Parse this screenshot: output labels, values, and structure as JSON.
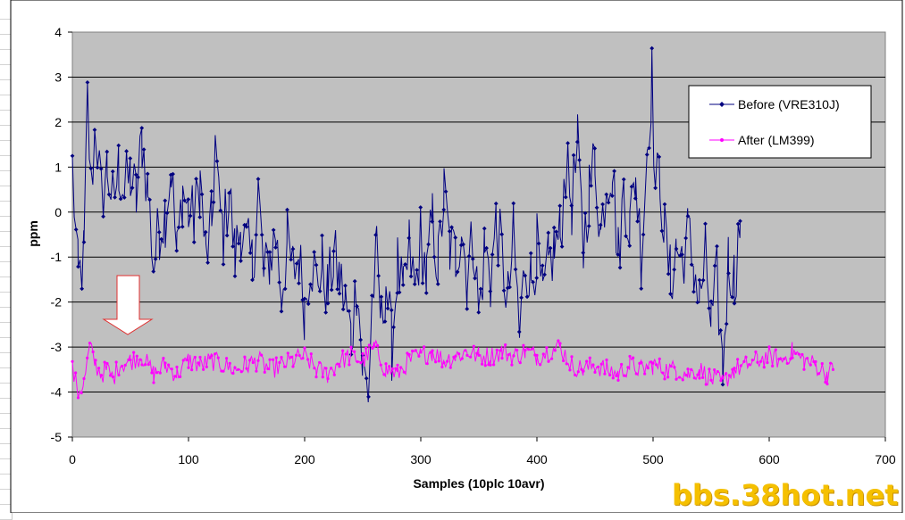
{
  "watermark": "bbs.38hot.net",
  "chart_data": {
    "type": "line",
    "title": "",
    "xlabel": "Samples (10plc 10avr)",
    "ylabel": "ppm",
    "xlim": [
      0,
      700
    ],
    "ylim": [
      -5,
      4
    ],
    "xticks": [
      0,
      100,
      200,
      300,
      400,
      500,
      600,
      700
    ],
    "yticks": [
      -5,
      -4,
      -3,
      -2,
      -1,
      0,
      1,
      2,
      3,
      4
    ],
    "grid": "horizontal",
    "legend_position": "top-right",
    "plot_background": "#c0c0c0",
    "series": [
      {
        "name": "Before (VRE310J)",
        "color": "#000080",
        "marker": "diamond",
        "x": [
          0,
          5,
          10,
          13,
          16,
          20,
          25,
          30,
          35,
          40,
          45,
          50,
          55,
          60,
          65,
          70,
          75,
          80,
          85,
          90,
          95,
          100,
          105,
          110,
          115,
          120,
          123,
          126,
          130,
          135,
          140,
          145,
          150,
          155,
          160,
          165,
          170,
          175,
          180,
          185,
          190,
          195,
          200,
          205,
          210,
          215,
          220,
          225,
          230,
          235,
          240,
          245,
          250,
          255,
          258,
          262,
          266,
          270,
          275,
          280,
          285,
          290,
          295,
          300,
          305,
          310,
          315,
          320,
          325,
          330,
          335,
          340,
          345,
          350,
          355,
          360,
          365,
          370,
          375,
          380,
          385,
          390,
          395,
          400,
          405,
          410,
          415,
          420,
          425,
          430,
          435,
          440,
          445,
          450,
          455,
          460,
          465,
          470,
          475,
          480,
          485,
          490,
          495,
          499,
          502,
          506,
          510,
          515,
          520,
          525,
          530,
          535,
          540,
          545,
          550,
          555,
          560,
          565,
          570,
          575
        ],
        "values": [
          1.0,
          -1.5,
          -1.0,
          2.5,
          0.5,
          2.0,
          0.3,
          1.0,
          0.2,
          1.0,
          0.5,
          0.8,
          0.3,
          1.6,
          0.5,
          -1.2,
          -0.3,
          0.0,
          1.0,
          -1.0,
          0.5,
          0.0,
          -0.2,
          0.7,
          -1.0,
          -0.3,
          1.6,
          0.2,
          -0.5,
          0.5,
          -1.0,
          -0.3,
          -0.8,
          -1.2,
          0.5,
          -1.5,
          -1.0,
          -0.5,
          -1.8,
          -0.7,
          -1.3,
          -1.0,
          -2.1,
          -1.0,
          -1.5,
          -1.2,
          -1.8,
          -1.0,
          -1.5,
          -2.0,
          -2.8,
          -1.5,
          -3.5,
          -4.0,
          -2.0,
          -1.0,
          -2.5,
          -1.5,
          -3.0,
          -1.2,
          -2.0,
          -0.8,
          -1.8,
          -0.5,
          -1.5,
          -0.2,
          -1.2,
          0.4,
          -0.8,
          -1.0,
          -0.3,
          -1.5,
          -0.5,
          -2.3,
          -0.8,
          -1.5,
          -0.2,
          -1.0,
          -2.0,
          -0.5,
          -2.8,
          -1.0,
          -1.5,
          -0.8,
          -2.0,
          -1.2,
          -0.8,
          -0.5,
          1.0,
          0.2,
          1.4,
          -0.8,
          0.5,
          1.2,
          -0.5,
          0.8,
          1.0,
          -1.0,
          0.5,
          -0.3,
          0.8,
          -1.0,
          1.5,
          3.0,
          0.5,
          0.8,
          -0.5,
          -1.5,
          -0.8,
          -1.0,
          -0.5,
          -1.2,
          -2.0,
          -1.0,
          -2.5,
          -1.5,
          -3.5,
          -1.0,
          -1.5,
          -0.2
        ],
        "x_end": 575
      },
      {
        "name": "After (LM399)",
        "color": "#ff00ff",
        "marker": "circle",
        "x": [
          0,
          5,
          10,
          15,
          20,
          25,
          30,
          35,
          40,
          50,
          60,
          70,
          80,
          90,
          100,
          110,
          120,
          130,
          140,
          150,
          160,
          170,
          180,
          190,
          200,
          210,
          220,
          230,
          240,
          250,
          260,
          270,
          280,
          290,
          300,
          310,
          320,
          330,
          340,
          350,
          360,
          370,
          380,
          390,
          400,
          410,
          420,
          430,
          440,
          450,
          460,
          470,
          480,
          490,
          500,
          510,
          520,
          530,
          540,
          550,
          560,
          570,
          580,
          590,
          600,
          610,
          620,
          630,
          640,
          650,
          655
        ],
        "values": [
          -3.5,
          -4.0,
          -3.8,
          -3.0,
          -3.4,
          -3.6,
          -3.5,
          -3.7,
          -3.4,
          -3.3,
          -3.2,
          -3.6,
          -3.4,
          -3.6,
          -3.3,
          -3.4,
          -3.3,
          -3.4,
          -3.5,
          -3.4,
          -3.3,
          -3.5,
          -3.4,
          -3.3,
          -3.2,
          -3.5,
          -3.6,
          -3.3,
          -3.2,
          -3.3,
          -3.0,
          -3.5,
          -3.6,
          -3.3,
          -3.2,
          -3.1,
          -3.3,
          -3.2,
          -3.1,
          -3.2,
          -3.2,
          -3.1,
          -3.2,
          -3.1,
          -3.2,
          -3.1,
          -3.0,
          -3.4,
          -3.5,
          -3.4,
          -3.5,
          -3.6,
          -3.4,
          -3.5,
          -3.4,
          -3.5,
          -3.5,
          -3.6,
          -3.5,
          -3.7,
          -3.8,
          -3.5,
          -3.4,
          -3.3,
          -3.2,
          -3.3,
          -3.1,
          -3.3,
          -3.4,
          -3.6,
          -3.5
        ]
      }
    ]
  }
}
